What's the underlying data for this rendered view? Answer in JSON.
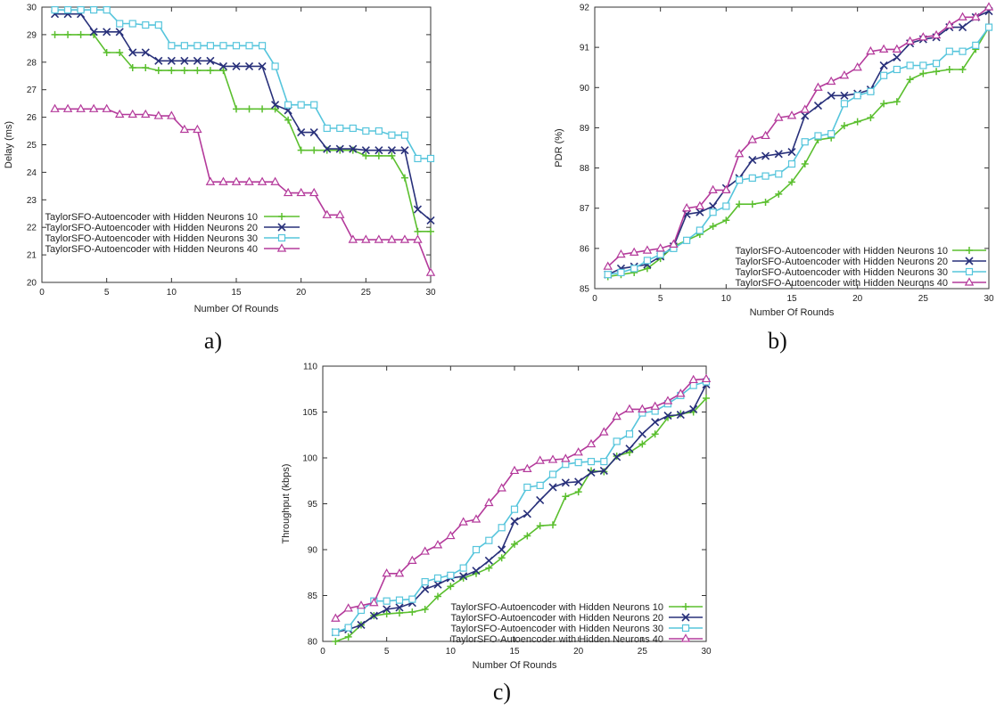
{
  "series_colors": [
    "#5bbf2f",
    "#28307a",
    "#56c5dc",
    "#b43a9b"
  ],
  "series_markers": [
    "plus",
    "cross",
    "square",
    "triangle"
  ],
  "chart_data": [
    {
      "type": "line",
      "panel_label": "a)",
      "xlabel": "Number Of Rounds",
      "ylabel": "Delay (ms)",
      "xlim": [
        0,
        30
      ],
      "ylim": [
        20,
        30
      ],
      "xticks": [
        0,
        5,
        10,
        15,
        20,
        25,
        30
      ],
      "yticks": [
        20,
        21,
        22,
        23,
        24,
        25,
        26,
        27,
        28,
        29,
        30
      ],
      "legend_position": "bottom-right",
      "grid": false,
      "x": [
        1,
        2,
        3,
        4,
        5,
        6,
        7,
        8,
        9,
        10,
        11,
        12,
        13,
        14,
        15,
        16,
        17,
        18,
        19,
        20,
        21,
        22,
        23,
        24,
        25,
        26,
        27,
        28,
        29,
        30
      ],
      "series": [
        {
          "name": "TaylorSFO-Autoencoder with Hidden Neurons 10",
          "values": [
            29.0,
            29.0,
            29.0,
            29.0,
            28.35,
            28.35,
            27.8,
            27.8,
            27.7,
            27.7,
            27.7,
            27.7,
            27.7,
            27.7,
            26.3,
            26.3,
            26.3,
            26.3,
            25.9,
            24.8,
            24.8,
            24.8,
            24.8,
            24.8,
            24.6,
            24.6,
            24.6,
            23.8,
            21.85,
            21.85
          ]
        },
        {
          "name": "TaylorSFO-Autoencoder with Hidden Neurons 20",
          "values": [
            29.75,
            29.75,
            29.75,
            29.1,
            29.1,
            29.1,
            28.35,
            28.35,
            28.05,
            28.05,
            28.05,
            28.05,
            28.05,
            27.85,
            27.85,
            27.85,
            27.85,
            26.45,
            26.25,
            25.45,
            25.45,
            24.85,
            24.85,
            24.85,
            24.8,
            24.8,
            24.8,
            24.8,
            22.65,
            22.25
          ]
        },
        {
          "name": "TaylorSFO-Autoencoder with Hidden Neurons 30",
          "values": [
            29.9,
            29.9,
            29.9,
            29.9,
            29.9,
            29.4,
            29.4,
            29.35,
            29.35,
            28.6,
            28.6,
            28.6,
            28.6,
            28.6,
            28.6,
            28.6,
            28.6,
            27.85,
            26.45,
            26.45,
            26.45,
            25.6,
            25.6,
            25.6,
            25.5,
            25.5,
            25.35,
            25.35,
            24.5,
            24.5
          ]
        },
        {
          "name": "TaylorSFO-Autoencoder with Hidden Neurons 40",
          "values": [
            26.3,
            26.3,
            26.3,
            26.3,
            26.3,
            26.1,
            26.1,
            26.1,
            26.05,
            26.05,
            25.55,
            25.55,
            23.65,
            23.65,
            23.65,
            23.65,
            23.65,
            23.65,
            23.25,
            23.25,
            23.25,
            22.45,
            22.45,
            21.55,
            21.55,
            21.55,
            21.55,
            21.55,
            21.55,
            20.35
          ]
        }
      ]
    },
    {
      "type": "line",
      "panel_label": "b)",
      "xlabel": "Number Of Rounds",
      "ylabel": "PDR (%)",
      "xlim": [
        0,
        30
      ],
      "ylim": [
        85,
        92
      ],
      "xticks": [
        0,
        5,
        10,
        15,
        20,
        25,
        30
      ],
      "yticks": [
        85,
        86,
        87,
        88,
        89,
        90,
        91,
        92
      ],
      "legend_position": "bottom-right",
      "grid": false,
      "x": [
        1,
        2,
        3,
        4,
        5,
        6,
        7,
        8,
        9,
        10,
        11,
        12,
        13,
        14,
        15,
        16,
        17,
        18,
        19,
        20,
        21,
        22,
        23,
        24,
        25,
        26,
        27,
        28,
        29,
        30
      ],
      "series": [
        {
          "name": "TaylorSFO-Autoencoder with Hidden Neurons 10",
          "values": [
            85.3,
            85.35,
            85.4,
            85.5,
            85.75,
            86.05,
            86.2,
            86.35,
            86.55,
            86.7,
            87.1,
            87.1,
            87.15,
            87.35,
            87.65,
            88.1,
            88.7,
            88.75,
            89.05,
            89.15,
            89.25,
            89.6,
            89.65,
            90.2,
            90.35,
            90.4,
            90.45,
            90.45,
            90.95,
            91.5
          ]
        },
        {
          "name": "TaylorSFO-Autoencoder with Hidden Neurons 20",
          "values": [
            85.35,
            85.5,
            85.55,
            85.6,
            85.8,
            86.05,
            86.85,
            86.9,
            87.05,
            87.5,
            87.75,
            88.2,
            88.3,
            88.35,
            88.4,
            89.3,
            89.55,
            89.8,
            89.8,
            89.85,
            89.95,
            90.55,
            90.75,
            91.1,
            91.2,
            91.25,
            91.5,
            91.5,
            91.75,
            91.9
          ]
        },
        {
          "name": "TaylorSFO-Autoencoder with Hidden Neurons 30",
          "values": [
            85.35,
            85.4,
            85.5,
            85.7,
            85.85,
            86.0,
            86.2,
            86.45,
            86.9,
            87.05,
            87.7,
            87.75,
            87.8,
            87.85,
            88.1,
            88.65,
            88.8,
            88.85,
            89.6,
            89.8,
            89.9,
            90.3,
            90.45,
            90.55,
            90.55,
            90.6,
            90.9,
            90.9,
            91.05,
            91.5
          ]
        },
        {
          "name": "TaylorSFO-Autoencoder with Hidden Neurons 40",
          "values": [
            85.55,
            85.85,
            85.9,
            85.95,
            86.0,
            86.1,
            87.0,
            87.05,
            87.45,
            87.45,
            88.35,
            88.7,
            88.8,
            89.25,
            89.3,
            89.45,
            90.0,
            90.15,
            90.3,
            90.5,
            90.9,
            90.95,
            90.95,
            91.15,
            91.25,
            91.3,
            91.55,
            91.75,
            91.75,
            92.0
          ]
        }
      ]
    },
    {
      "type": "line",
      "panel_label": "c)",
      "xlabel": "Number Of Rounds",
      "ylabel": "Throughput (kbps)",
      "xlim": [
        0,
        30
      ],
      "ylim": [
        80,
        110
      ],
      "xticks": [
        0,
        5,
        10,
        15,
        20,
        25,
        30
      ],
      "yticks": [
        80,
        85,
        90,
        95,
        100,
        105,
        110
      ],
      "legend_position": "bottom-right",
      "grid": false,
      "x": [
        1,
        2,
        3,
        4,
        5,
        6,
        7,
        8,
        9,
        10,
        11,
        12,
        13,
        14,
        15,
        16,
        17,
        18,
        19,
        20,
        21,
        22,
        23,
        24,
        25,
        26,
        27,
        28,
        29,
        30
      ],
      "series": [
        {
          "name": "TaylorSFO-Autoencoder with Hidden Neurons 10",
          "values": [
            80.0,
            80.5,
            81.8,
            82.8,
            83.0,
            83.1,
            83.2,
            83.5,
            84.9,
            86.0,
            86.9,
            87.4,
            88.0,
            89.1,
            90.6,
            91.5,
            92.6,
            92.7,
            95.8,
            96.3,
            98.6,
            98.5,
            100.2,
            100.6,
            101.5,
            102.6,
            104.4,
            104.8,
            105.0,
            106.5
          ]
        },
        {
          "name": "TaylorSFO-Autoencoder with Hidden Neurons 20",
          "values": [
            81.0,
            81.3,
            81.8,
            82.8,
            83.5,
            83.7,
            84.2,
            85.7,
            86.2,
            86.9,
            87.1,
            87.7,
            88.8,
            90.0,
            93.1,
            93.9,
            95.4,
            96.8,
            97.3,
            97.4,
            98.4,
            98.6,
            100.1,
            101.0,
            102.6,
            103.9,
            104.6,
            104.7,
            105.3,
            108.0
          ]
        },
        {
          "name": "TaylorSFO-Autoencoder with Hidden Neurons 30",
          "values": [
            81.0,
            81.5,
            83.4,
            84.4,
            84.4,
            84.5,
            84.6,
            86.5,
            86.9,
            87.2,
            88.0,
            90.0,
            91.0,
            92.4,
            94.4,
            96.8,
            97.0,
            98.2,
            99.3,
            99.5,
            99.6,
            99.6,
            101.8,
            102.6,
            104.9,
            105.1,
            105.9,
            106.8,
            107.9,
            108.3
          ]
        },
        {
          "name": "TaylorSFO-Autoencoder with Hidden Neurons 40",
          "values": [
            82.5,
            83.6,
            83.9,
            84.2,
            87.4,
            87.4,
            88.8,
            89.8,
            90.5,
            91.5,
            93.0,
            93.3,
            95.1,
            96.7,
            98.6,
            98.8,
            99.7,
            99.8,
            99.9,
            100.6,
            101.5,
            102.8,
            104.5,
            105.3,
            105.3,
            105.6,
            106.2,
            107.0,
            108.5,
            108.6
          ]
        }
      ]
    }
  ]
}
